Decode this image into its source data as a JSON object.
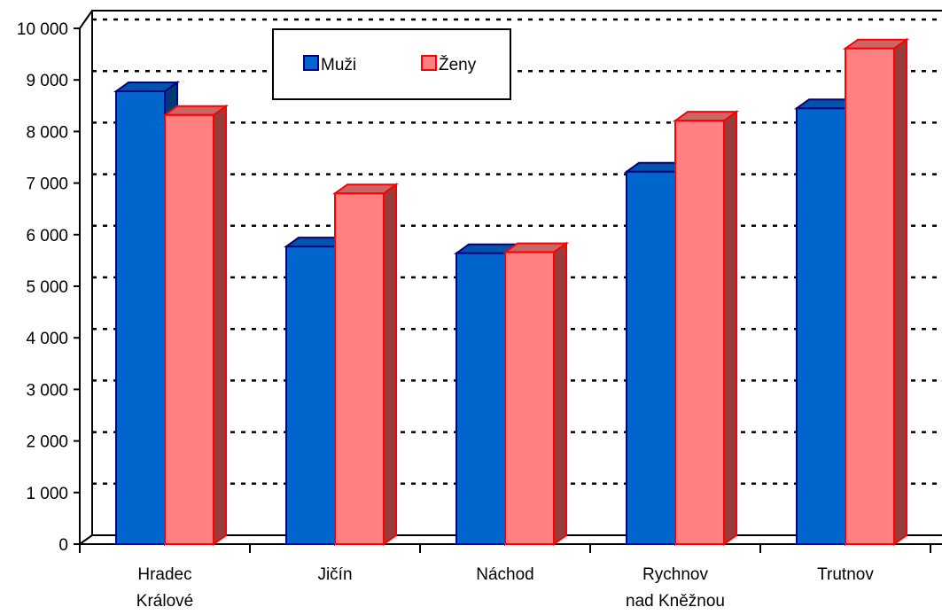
{
  "chart_data": {
    "type": "bar",
    "categories": [
      [
        "Hradec",
        "Králové"
      ],
      [
        "Jičín"
      ],
      [
        "Náchod"
      ],
      [
        "Rychnov",
        "nad Kněžnou"
      ],
      [
        "Trutnov"
      ]
    ],
    "series": [
      {
        "name": "Muži",
        "values": [
          8780,
          5770,
          5640,
          7220,
          8450
        ],
        "color": "#0066cc"
      },
      {
        "name": "Ženy",
        "values": [
          8320,
          6800,
          5660,
          8210,
          9610
        ],
        "color": "#ff8080"
      }
    ],
    "ylim": [
      0,
      10000
    ],
    "yticks": [
      "0",
      "1 000",
      "2 000",
      "3 000",
      "4 000",
      "5 000",
      "6 000",
      "7 000",
      "8 000",
      "9 000",
      "10 000"
    ],
    "grid": true,
    "legend_position": "top",
    "three_d": true
  }
}
